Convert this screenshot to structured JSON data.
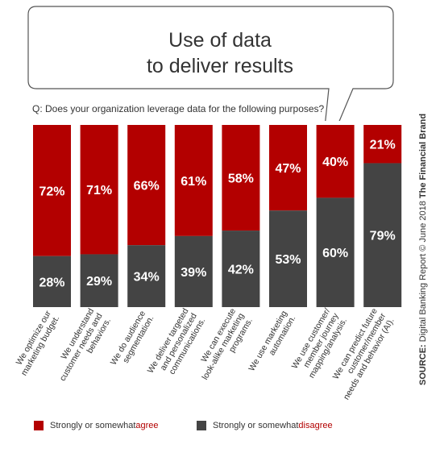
{
  "header": {
    "title_line1": "Use of data",
    "title_line2": "to deliver results",
    "question": "Q: Does your organization leverage data for the following purposes?"
  },
  "source": {
    "label": "SOURCE:",
    "text": "Digital Banking Report",
    "date": "© June 2018",
    "brand": "The Financial Brand"
  },
  "legend": {
    "agree_prefix": "Strongly or somewhat ",
    "agree_word": "agree",
    "disagree_prefix": "Strongly or somewhat ",
    "disagree_word": "disagree"
  },
  "colors": {
    "agree": "#b30000",
    "disagree": "#444444",
    "label_text": "#ffffff"
  },
  "chart_data": {
    "type": "bar",
    "stacked": true,
    "percent": true,
    "categories": [
      [
        "We optimize our",
        "marketing budget."
      ],
      [
        "We understand",
        "customer needs and",
        "behaviors."
      ],
      [
        "We do audience",
        "segmentation."
      ],
      [
        "We deliver targeted",
        "and personalized",
        "communications."
      ],
      [
        "We can execute",
        "look-alike marketing",
        "programs."
      ],
      [
        "We use marketing",
        "automation."
      ],
      [
        "We use customer/",
        "member journey",
        "mapping/analysis."
      ],
      [
        "We can predict future",
        "customer/member",
        "needs and behavior (AI)."
      ]
    ],
    "series": [
      {
        "name": "Strongly or somewhat disagree",
        "values": [
          28,
          29,
          34,
          39,
          42,
          53,
          60,
          79
        ]
      },
      {
        "name": "Strongly or somewhat agree",
        "values": [
          72,
          71,
          66,
          61,
          58,
          47,
          40,
          21
        ]
      }
    ],
    "ylim": [
      0,
      100
    ]
  }
}
